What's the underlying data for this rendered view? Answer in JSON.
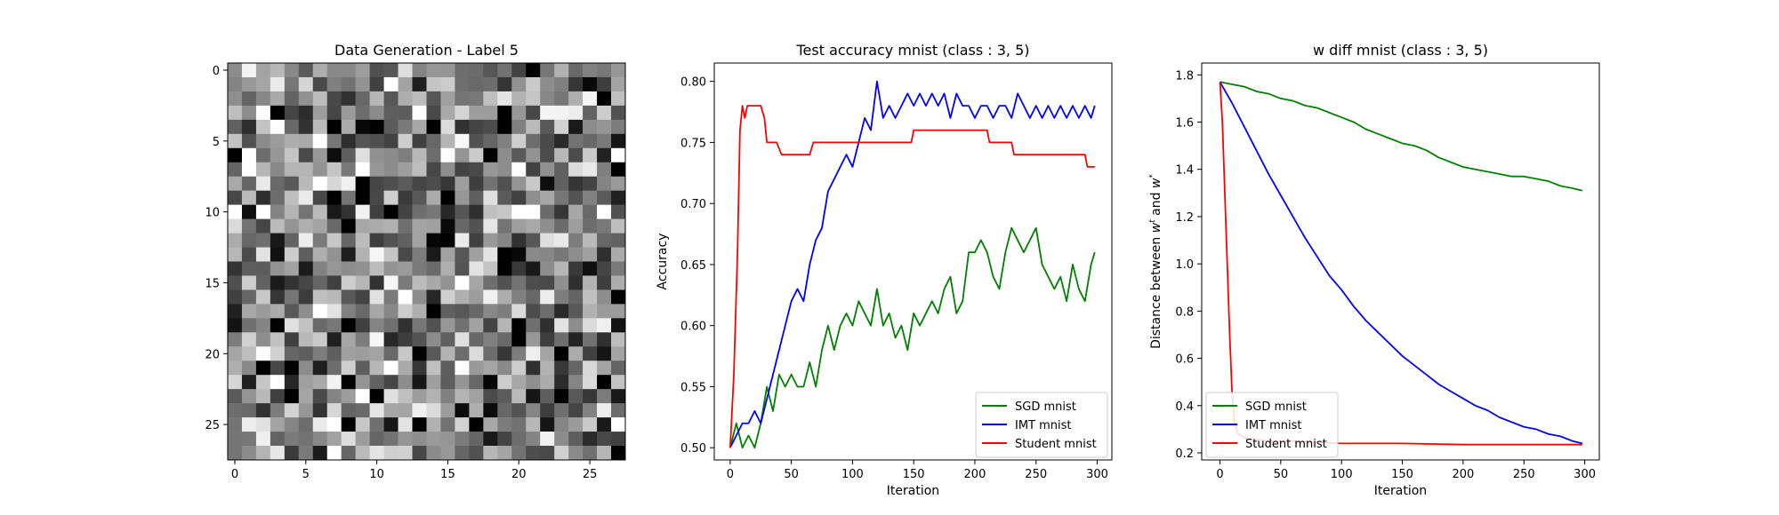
{
  "chart_data": [
    {
      "type": "heatmap",
      "title": "Data Generation - Label 5",
      "rows": 28,
      "cols": 28,
      "colormap": "gray",
      "xticks": [
        0,
        5,
        10,
        15,
        20,
        25
      ],
      "yticks": [
        0,
        5,
        10,
        15,
        20,
        25
      ],
      "note_values": "random grayscale noise pattern, values approximated"
    },
    {
      "type": "line",
      "title": "Test accuracy mnist (class : 3, 5)",
      "xlabel": "Iteration",
      "ylabel": "Accuracy",
      "xlim": [
        -13,
        312
      ],
      "ylim": [
        0.49,
        0.815
      ],
      "xticks": [
        0,
        50,
        100,
        150,
        200,
        250,
        300
      ],
      "yticks": [
        0.5,
        0.55,
        0.6,
        0.65,
        0.7,
        0.75,
        0.8
      ],
      "legend_position": "lower-right",
      "series": [
        {
          "name": "SGD mnist",
          "color": "#008000",
          "x": [
            0,
            5,
            10,
            15,
            20,
            25,
            30,
            35,
            40,
            45,
            50,
            55,
            60,
            65,
            70,
            75,
            80,
            85,
            90,
            95,
            100,
            105,
            110,
            115,
            120,
            125,
            130,
            135,
            140,
            145,
            150,
            155,
            160,
            165,
            170,
            175,
            180,
            185,
            190,
            195,
            200,
            205,
            210,
            215,
            220,
            225,
            230,
            235,
            240,
            245,
            250,
            255,
            260,
            265,
            270,
            275,
            280,
            285,
            290,
            295,
            298
          ],
          "y": [
            0.5,
            0.52,
            0.5,
            0.51,
            0.5,
            0.52,
            0.55,
            0.53,
            0.56,
            0.55,
            0.56,
            0.55,
            0.55,
            0.57,
            0.55,
            0.58,
            0.6,
            0.58,
            0.6,
            0.61,
            0.6,
            0.62,
            0.61,
            0.6,
            0.63,
            0.6,
            0.61,
            0.59,
            0.6,
            0.58,
            0.61,
            0.6,
            0.61,
            0.62,
            0.61,
            0.63,
            0.64,
            0.61,
            0.62,
            0.66,
            0.66,
            0.67,
            0.66,
            0.64,
            0.63,
            0.66,
            0.68,
            0.67,
            0.66,
            0.67,
            0.68,
            0.65,
            0.64,
            0.63,
            0.64,
            0.62,
            0.65,
            0.63,
            0.62,
            0.65,
            0.66
          ]
        },
        {
          "name": "IMT mnist",
          "color": "#0000ff",
          "x": [
            0,
            5,
            10,
            15,
            20,
            25,
            30,
            35,
            40,
            45,
            50,
            55,
            60,
            65,
            70,
            75,
            80,
            85,
            90,
            95,
            100,
            105,
            110,
            115,
            120,
            125,
            130,
            135,
            140,
            145,
            150,
            155,
            160,
            165,
            170,
            175,
            180,
            185,
            190,
            195,
            200,
            205,
            210,
            215,
            220,
            225,
            230,
            235,
            240,
            245,
            250,
            255,
            260,
            265,
            270,
            275,
            280,
            285,
            290,
            295,
            298
          ],
          "y": [
            0.5,
            0.51,
            0.52,
            0.52,
            0.53,
            0.52,
            0.54,
            0.56,
            0.58,
            0.6,
            0.62,
            0.63,
            0.62,
            0.65,
            0.67,
            0.68,
            0.71,
            0.72,
            0.73,
            0.74,
            0.73,
            0.75,
            0.77,
            0.76,
            0.8,
            0.77,
            0.78,
            0.77,
            0.78,
            0.79,
            0.78,
            0.79,
            0.78,
            0.79,
            0.78,
            0.79,
            0.77,
            0.79,
            0.78,
            0.78,
            0.77,
            0.78,
            0.78,
            0.77,
            0.78,
            0.78,
            0.77,
            0.79,
            0.78,
            0.77,
            0.78,
            0.77,
            0.78,
            0.77,
            0.78,
            0.77,
            0.78,
            0.77,
            0.78,
            0.77,
            0.78
          ]
        },
        {
          "name": "Student mnist",
          "color": "#ff0000",
          "x": [
            0,
            3,
            6,
            8,
            10,
            12,
            14,
            16,
            18,
            20,
            25,
            28,
            30,
            32,
            38,
            42,
            48,
            55,
            60,
            65,
            68,
            70,
            75,
            80,
            90,
            100,
            110,
            120,
            130,
            140,
            148,
            150,
            152,
            160,
            170,
            180,
            190,
            200,
            210,
            212,
            220,
            230,
            232,
            240,
            250,
            260,
            270,
            280,
            290,
            292,
            295,
            298
          ],
          "y": [
            0.5,
            0.56,
            0.66,
            0.76,
            0.78,
            0.77,
            0.78,
            0.78,
            0.78,
            0.78,
            0.78,
            0.77,
            0.75,
            0.75,
            0.75,
            0.74,
            0.74,
            0.74,
            0.74,
            0.74,
            0.75,
            0.75,
            0.75,
            0.75,
            0.75,
            0.75,
            0.75,
            0.75,
            0.75,
            0.75,
            0.75,
            0.76,
            0.76,
            0.76,
            0.76,
            0.76,
            0.76,
            0.76,
            0.76,
            0.75,
            0.75,
            0.75,
            0.74,
            0.74,
            0.74,
            0.74,
            0.74,
            0.74,
            0.74,
            0.73,
            0.73,
            0.73
          ]
        }
      ]
    },
    {
      "type": "line",
      "title": "w diff mnist (class : 3, 5)",
      "xlabel": "Iteration",
      "ylabel_prefix": "Distance between ",
      "ylabel_w": "w",
      "ylabel_sup1": "t",
      "ylabel_mid": " and ",
      "ylabel_sup2": "*",
      "xlim": [
        -15,
        312
      ],
      "ylim": [
        0.17,
        1.85
      ],
      "xticks": [
        0,
        50,
        100,
        150,
        200,
        250,
        300
      ],
      "yticks": [
        0.2,
        0.4,
        0.6,
        0.8,
        1.0,
        1.2,
        1.4,
        1.6,
        1.8
      ],
      "legend_position": "lower-left",
      "series": [
        {
          "name": "SGD mnist",
          "color": "#008000",
          "x": [
            0,
            10,
            20,
            30,
            40,
            50,
            60,
            70,
            80,
            90,
            100,
            110,
            120,
            130,
            140,
            150,
            160,
            170,
            180,
            190,
            200,
            210,
            220,
            230,
            240,
            250,
            260,
            270,
            280,
            290,
            298
          ],
          "y": [
            1.77,
            1.76,
            1.75,
            1.73,
            1.72,
            1.7,
            1.69,
            1.67,
            1.66,
            1.64,
            1.62,
            1.6,
            1.57,
            1.55,
            1.53,
            1.51,
            1.5,
            1.48,
            1.45,
            1.43,
            1.41,
            1.4,
            1.39,
            1.38,
            1.37,
            1.37,
            1.36,
            1.35,
            1.33,
            1.32,
            1.31
          ]
        },
        {
          "name": "IMT mnist",
          "color": "#0000ff",
          "x": [
            0,
            10,
            20,
            30,
            40,
            50,
            60,
            70,
            80,
            90,
            100,
            110,
            120,
            130,
            140,
            150,
            160,
            170,
            180,
            190,
            200,
            210,
            220,
            230,
            240,
            250,
            260,
            270,
            280,
            290,
            298
          ],
          "y": [
            1.77,
            1.68,
            1.58,
            1.48,
            1.38,
            1.29,
            1.2,
            1.11,
            1.03,
            0.95,
            0.89,
            0.82,
            0.76,
            0.71,
            0.66,
            0.61,
            0.57,
            0.53,
            0.49,
            0.46,
            0.43,
            0.4,
            0.38,
            0.35,
            0.33,
            0.31,
            0.3,
            0.28,
            0.27,
            0.25,
            0.24
          ]
        },
        {
          "name": "Student mnist",
          "color": "#ff0000",
          "x": [
            0,
            2,
            4,
            6,
            8,
            10,
            12,
            15,
            18,
            22,
            30,
            40,
            60,
            80,
            100,
            120,
            150,
            200,
            250,
            298
          ],
          "y": [
            1.77,
            1.6,
            1.3,
            1.0,
            0.7,
            0.45,
            0.33,
            0.28,
            0.27,
            0.26,
            0.255,
            0.25,
            0.25,
            0.245,
            0.24,
            0.24,
            0.24,
            0.235,
            0.235,
            0.235
          ]
        }
      ]
    }
  ]
}
